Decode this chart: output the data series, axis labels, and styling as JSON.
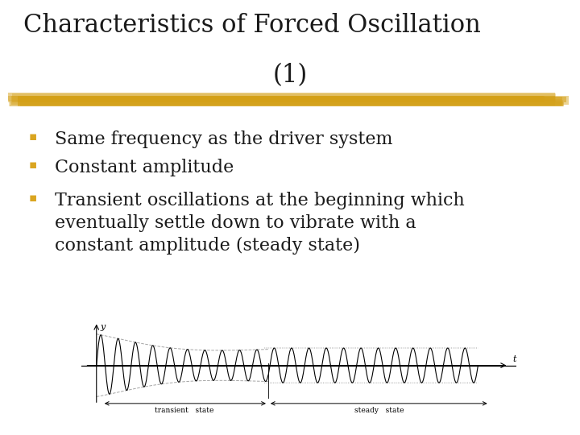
{
  "title_line1": "Characteristics of Forced Oscillation",
  "title_line2": "(1)",
  "title_fontsize": 22,
  "title_color": "#1a1a1a",
  "title_font": "serif",
  "highlight_color": "#D4A017",
  "bullet_color": "#DAA520",
  "bullet_items": [
    "Same frequency as the driver system",
    "Constant amplitude",
    "Transient oscillations at the beginning which\neventually settle down to vibrate with a\nconstant amplitude (steady state)"
  ],
  "bullet_fontsize": 16,
  "text_color": "#1a1a1a",
  "background_color": "#FFFFFF",
  "transient_label": "transient   state",
  "steady_label": "steady   state",
  "axis_label_t": "t",
  "axis_label_y": "y"
}
